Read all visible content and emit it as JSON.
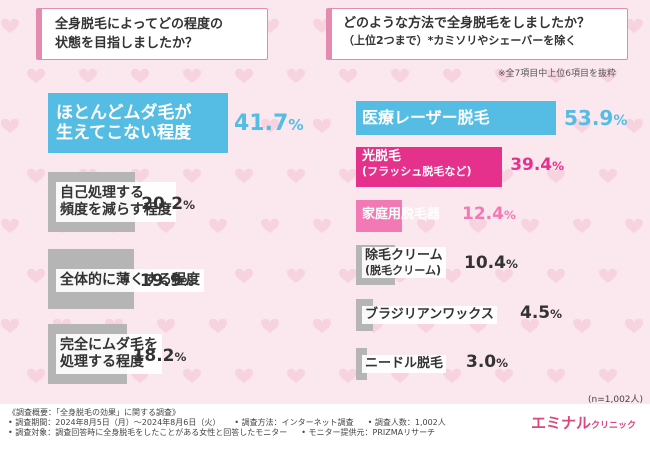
{
  "question_left": {
    "line1": "全身脱毛によってどの程度の",
    "line2": "状態を目指しましたか？"
  },
  "question_right": {
    "line1": "どのような方法で全身脱毛をしましたか？",
    "line2": "（上位2つまで）*カミソリやシェーバーを除く"
  },
  "note": "※全7項目中上位6項目を抜粋",
  "sample_size": "(n=1,002人)",
  "footer": {
    "line1": "《調査概要：「全身脱毛の効果」に関する調査》",
    "period": "• 調査期間：2024年8月5日（月）～2024年8月6日（火）",
    "method": "• 調査方法：インターネット調査",
    "count": "• 調査人数：1,002人",
    "target": "• 調査対象：調査回答時に全身脱毛をしたことがある女性と回答したモニター",
    "provider": "• モニター提供元：PRIZMAリサーチ"
  },
  "logo": {
    "main": "エミナル",
    "sub": "クリニック"
  },
  "colors": {
    "accent": "#55bde3",
    "pink": "#e5318b",
    "pink_light": "#f27ab4",
    "gray": "#b5b5b5",
    "border": "#e58bb0"
  },
  "chart_data": [
    {
      "type": "bar",
      "orientation": "horizontal",
      "categories": [
        [
          "ほとんどムダ毛が",
          "生えてこない程度"
        ],
        [
          "自己処理する",
          "頻度を減らす程度"
        ],
        [
          "全体的に薄くする程度"
        ],
        [
          "完全にムダ毛を",
          "処理する程度"
        ]
      ],
      "values": [
        41.7,
        20.2,
        19.9,
        18.2
      ],
      "value_labels": [
        {
          "num": "41.7",
          "unit": "%"
        },
        {
          "num": "20.2",
          "unit": "%"
        },
        {
          "num": "19.9",
          "unit": "%"
        },
        {
          "num": "18.2",
          "unit": "%"
        }
      ],
      "highlight": [
        true,
        false,
        false,
        false
      ]
    },
    {
      "type": "bar",
      "orientation": "horizontal",
      "categories": [
        [
          "医療レーザー脱毛"
        ],
        [
          "光脱毛",
          "(フラッシュ脱毛など)"
        ],
        [
          "家庭用脱毛器"
        ],
        [
          "除毛クリーム",
          "(脱毛クリーム)"
        ],
        [
          "ブラジリアンワックス"
        ],
        [
          "ニードル脱毛"
        ]
      ],
      "values": [
        53.9,
        39.4,
        12.4,
        10.4,
        4.5,
        3.0
      ],
      "value_labels": [
        {
          "num": "53.9",
          "unit": "%"
        },
        {
          "num": "39.4",
          "unit": "%"
        },
        {
          "num": "12.4",
          "unit": "%"
        },
        {
          "num": "10.4",
          "unit": "%"
        },
        {
          "num": "4.5",
          "unit": "%"
        },
        {
          "num": "3.0",
          "unit": "%"
        }
      ]
    }
  ]
}
